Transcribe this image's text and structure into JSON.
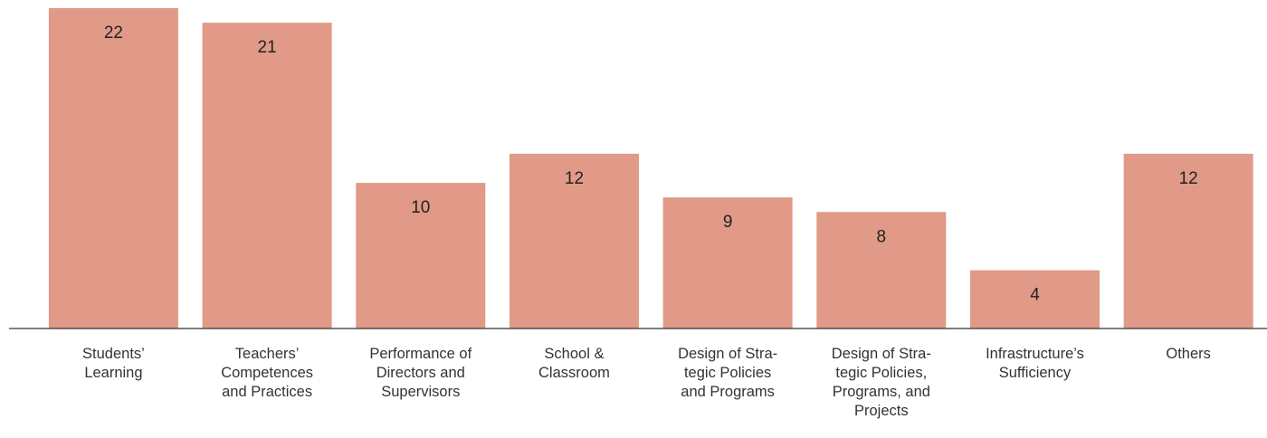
{
  "chart_data": {
    "type": "bar",
    "categories": [
      "Students’\nLearning",
      "Teachers’\nCompetences\nand Practices",
      "Performance of\nDirectors and\nSupervisors",
      "School &\nClassroom",
      "Design of Stra-\ntegic Policies\nand Programs",
      "Design of Stra-\ntegic Policies,\nPrograms, and\nProjects",
      "Infrastructure’s\nSufficiency",
      "Others"
    ],
    "values": [
      22,
      21,
      10,
      12,
      9,
      8,
      4,
      12
    ],
    "color": "#e09a87",
    "ylim": [
      0,
      22
    ]
  }
}
